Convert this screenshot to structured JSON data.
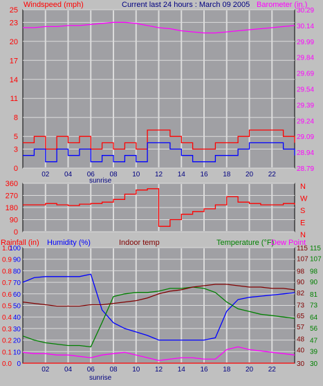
{
  "header": {
    "windspeed_label": "Windspeed (mph)",
    "title": "Current last 24 hours : March 09 2005",
    "barometer_label": "Barometer (in.)"
  },
  "colors": {
    "background": "#c0c0c0",
    "plot": "#a0a0a4",
    "grid": "#dcdcdc",
    "red": "#ff0000",
    "blue": "#0000ff",
    "magenta": "#ff00ff",
    "green": "#008000",
    "darkred": "#800000",
    "navy": "#000080"
  },
  "x_ticks": [
    "02",
    "04",
    "06",
    "08",
    "10",
    "12",
    "14",
    "16",
    "18",
    "20",
    "22"
  ],
  "sunrise_label": "sunrise",
  "chart_data": [
    {
      "type": "line",
      "name": "wind-barometer",
      "x_range": [
        0,
        24
      ],
      "left_axis": {
        "label": "Windspeed (mph)",
        "ylim": [
          0,
          25
        ],
        "ticks": [
          0,
          3,
          5,
          8,
          11,
          14,
          17,
          20,
          23,
          25
        ]
      },
      "right_axis": {
        "label": "Barometer (in.)",
        "ylim": [
          28.79,
          30.29
        ],
        "ticks": [
          28.79,
          28.94,
          29.09,
          29.24,
          29.39,
          29.54,
          29.69,
          29.84,
          29.99,
          30.14,
          30.29
        ]
      },
      "series": [
        {
          "axis": "right",
          "color": "#ff00ff",
          "x": [
            0,
            1,
            2,
            3,
            4,
            5,
            6,
            7,
            8,
            9,
            10,
            11,
            12,
            13,
            14,
            15,
            16,
            17,
            18,
            19,
            20,
            21,
            22,
            23,
            24
          ],
          "values": [
            30.12,
            30.12,
            30.13,
            30.13,
            30.14,
            30.14,
            30.15,
            30.16,
            30.17,
            30.17,
            30.16,
            30.14,
            30.12,
            30.11,
            30.09,
            30.08,
            30.07,
            30.07,
            30.08,
            30.09,
            30.1,
            30.11,
            30.12,
            30.13,
            30.14
          ]
        },
        {
          "axis": "left",
          "color": "#ff0000",
          "x": [
            0,
            1,
            2,
            3,
            4,
            5,
            6,
            7,
            8,
            9,
            10,
            11,
            12,
            13,
            14,
            15,
            16,
            17,
            18,
            19,
            20,
            21,
            22,
            23,
            24
          ],
          "values": [
            4,
            5,
            3,
            5,
            4,
            5,
            3,
            4,
            3,
            4,
            3,
            6,
            6,
            5,
            4,
            3,
            3,
            4,
            4,
            5,
            6,
            6,
            6,
            5,
            4
          ]
        },
        {
          "axis": "left",
          "color": "#0000ff",
          "x": [
            0,
            1,
            2,
            3,
            4,
            5,
            6,
            7,
            8,
            9,
            10,
            11,
            12,
            13,
            14,
            15,
            16,
            17,
            18,
            19,
            20,
            21,
            22,
            23,
            24
          ],
          "values": [
            2,
            3,
            1,
            3,
            2,
            3,
            1,
            2,
            1,
            2,
            1,
            4,
            4,
            3,
            2,
            1,
            1,
            2,
            2,
            3,
            4,
            4,
            4,
            3,
            2
          ]
        }
      ]
    },
    {
      "type": "line",
      "name": "wind-direction",
      "x_range": [
        0,
        24
      ],
      "left_axis": {
        "ylim": [
          0,
          360
        ],
        "ticks": [
          0,
          90,
          180,
          270,
          360
        ]
      },
      "right_axis": {
        "ticks": [
          "N",
          "W",
          "S",
          "E",
          "N"
        ]
      },
      "series": [
        {
          "axis": "left",
          "color": "#ff0000",
          "x": [
            0,
            1,
            2,
            3,
            4,
            5,
            6,
            7,
            8,
            9,
            10,
            11,
            12,
            13,
            14,
            15,
            16,
            17,
            18,
            19,
            20,
            21,
            22,
            23,
            24
          ],
          "values": [
            200,
            200,
            210,
            200,
            195,
            205,
            210,
            220,
            240,
            280,
            310,
            320,
            40,
            90,
            130,
            150,
            170,
            200,
            260,
            220,
            210,
            200,
            200,
            210,
            200
          ]
        }
      ]
    },
    {
      "type": "line",
      "name": "temperature-humidity",
      "x_range": [
        0,
        24
      ],
      "axes": [
        {
          "label": "Rainfall (in)",
          "ylim": [
            0,
            1
          ],
          "ticks": [
            0.0,
            0.1,
            0.2,
            0.3,
            0.4,
            0.5,
            0.6,
            0.7,
            0.8,
            0.9,
            1.0
          ]
        },
        {
          "label": "Humidity (%)",
          "ylim": [
            0,
            100
          ],
          "ticks": [
            0,
            10,
            20,
            30,
            40,
            50,
            60,
            70,
            80,
            90,
            100
          ]
        },
        {
          "label": "Indoor temp",
          "ylim": [
            30,
            115
          ],
          "ticks": [
            30,
            40,
            48,
            57,
            65,
            73,
            82,
            90,
            98,
            107,
            115
          ]
        },
        {
          "label": "Temperature (°F)",
          "ylim": [
            30,
            115
          ],
          "ticks": [
            30,
            39,
            47,
            56,
            64,
            73,
            81,
            90,
            98,
            107,
            115
          ]
        },
        {
          "label": "Dew Point"
        }
      ],
      "series": [
        {
          "axis": 1,
          "color": "#0000ff",
          "x": [
            0,
            1,
            2,
            3,
            4,
            5,
            6,
            7,
            8,
            9,
            10,
            11,
            12,
            13,
            14,
            15,
            16,
            17,
            18,
            19,
            20,
            21,
            22,
            23,
            24
          ],
          "values": [
            70,
            74,
            75,
            75,
            75,
            75,
            77,
            46,
            35,
            30,
            27,
            24,
            20,
            20,
            20,
            20,
            20,
            22,
            45,
            55,
            57,
            58,
            59,
            60,
            61
          ]
        },
        {
          "axis": 3,
          "color": "#008000",
          "x": [
            0,
            1,
            2,
            3,
            4,
            5,
            6,
            7,
            8,
            9,
            10,
            11,
            12,
            13,
            14,
            15,
            16,
            17,
            18,
            19,
            20,
            21,
            22,
            23,
            24
          ],
          "values": [
            50,
            47,
            45,
            44,
            43,
            43,
            42,
            60,
            79,
            81,
            82,
            82,
            83,
            85,
            85,
            86,
            85,
            82,
            75,
            70,
            68,
            66,
            65,
            64,
            63
          ]
        },
        {
          "axis": 2,
          "color": "#800000",
          "x": [
            0,
            1,
            2,
            3,
            4,
            5,
            6,
            7,
            8,
            9,
            10,
            11,
            12,
            13,
            14,
            15,
            16,
            17,
            18,
            19,
            20,
            21,
            22,
            23,
            24
          ],
          "values": [
            75,
            74,
            73,
            72,
            72,
            72,
            73,
            73,
            74,
            75,
            76,
            78,
            81,
            83,
            84,
            86,
            87,
            88,
            88,
            87,
            86,
            86,
            85,
            85,
            84
          ]
        },
        {
          "axis": 3,
          "color": "#ff00ff",
          "x": [
            0,
            1,
            2,
            3,
            4,
            5,
            6,
            7,
            8,
            9,
            10,
            11,
            12,
            13,
            14,
            15,
            16,
            17,
            18,
            19,
            20,
            21,
            22,
            23,
            24
          ],
          "values": [
            38,
            37,
            37,
            36,
            36,
            35,
            34,
            36,
            37,
            38,
            36,
            34,
            32,
            33,
            34,
            34,
            33,
            33,
            40,
            42,
            40,
            39,
            38,
            37,
            36
          ]
        },
        {
          "axis": 0,
          "color": "#ff0000",
          "x": [
            0,
            24
          ],
          "values": [
            0,
            0
          ]
        }
      ]
    }
  ]
}
